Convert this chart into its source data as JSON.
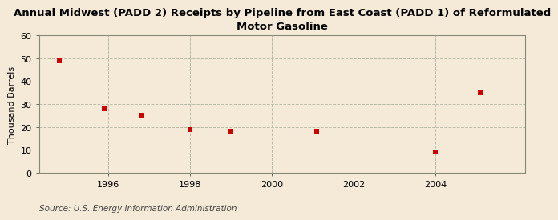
{
  "title": "Annual Midwest (PADD 2) Receipts by Pipeline from East Coast (PADD 1) of Reformulated\nMotor Gasoline",
  "ylabel": "Thousand Barrels",
  "source": "Source: U.S. Energy Information Administration",
  "x_values": [
    1994.8,
    1995.9,
    1996.8,
    1998.0,
    1999.0,
    2001.1,
    2004.0,
    2005.1
  ],
  "y_values": [
    49,
    28,
    25,
    19,
    18,
    18,
    9,
    35
  ],
  "marker_color": "#cc0000",
  "marker": "s",
  "marker_size": 16,
  "xlim": [
    1994.3,
    2006.2
  ],
  "ylim": [
    0,
    60
  ],
  "yticks": [
    0,
    10,
    20,
    30,
    40,
    50,
    60
  ],
  "xticks": [
    1996,
    1998,
    2000,
    2002,
    2004
  ],
  "background_color": "#f5ead8",
  "plot_bg_color": "#f5ead8",
  "grid_color": "#bbbbaa",
  "title_fontsize": 9.5,
  "label_fontsize": 8,
  "tick_fontsize": 8,
  "source_fontsize": 7.5
}
